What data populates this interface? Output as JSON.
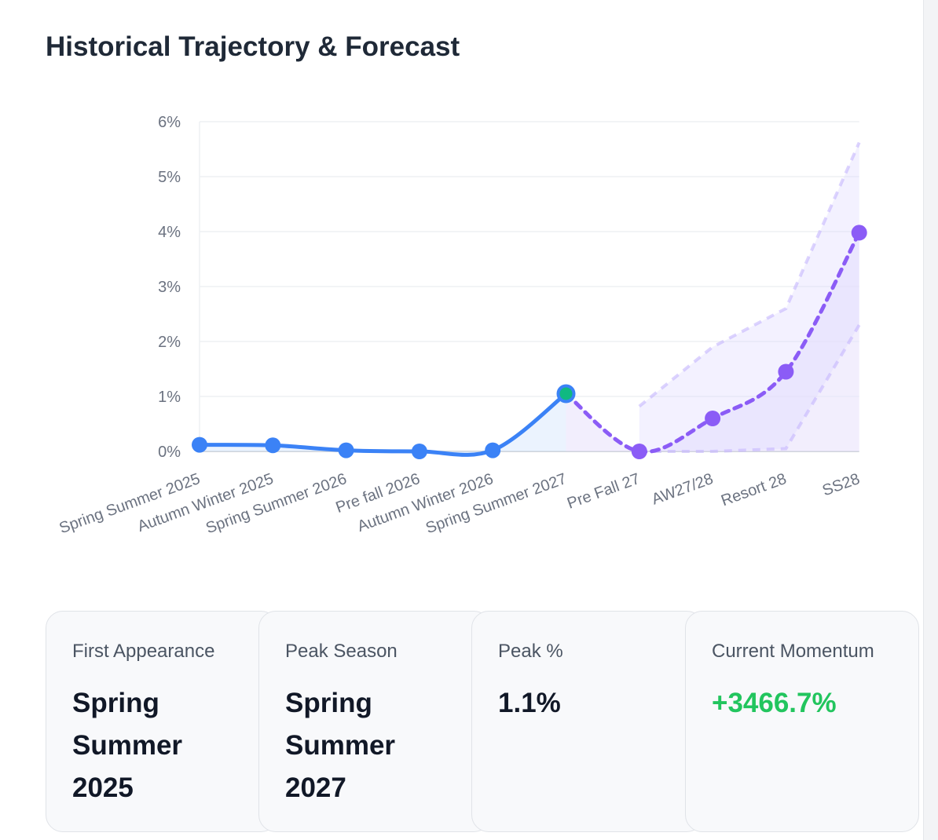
{
  "title": "Historical Trajectory & Forecast",
  "chart_data": {
    "type": "line",
    "categories": [
      "Spring Summer 2025",
      "Autumn Winter 2025",
      "Spring Summer 2026",
      "Pre fall 2026",
      "Autumn Winter 2026",
      "Spring Summer 2027",
      "Pre Fall 27",
      "AW27/28",
      "Resort 28",
      "SS28"
    ],
    "y_ticks": [
      "0%",
      "1%",
      "2%",
      "3%",
      "4%",
      "5%",
      "6%"
    ],
    "ylim": [
      0,
      6
    ],
    "grid": true,
    "historical": {
      "color": "#3b82f6",
      "values": [
        0.12,
        0.11,
        0.02,
        0.0,
        0.02,
        1.05
      ]
    },
    "peak_point": {
      "index": 5,
      "value": 1.05,
      "color": "#10b981"
    },
    "forecast": {
      "color": "#8b5cf6",
      "start_index": 5,
      "values": [
        1.05,
        0.0,
        0.6,
        1.45,
        3.98
      ]
    },
    "forecast_band": {
      "start_index": 6,
      "upper": [
        0.82,
        1.9,
        2.6,
        5.62
      ],
      "lower": [
        0.0,
        0.0,
        0.05,
        2.3
      ]
    }
  },
  "cards": [
    {
      "label": "First Appearance",
      "value": "Spring Summer 2025"
    },
    {
      "label": "Peak Season",
      "value": "Spring Summer 2027"
    },
    {
      "label": "Peak %",
      "value": "1.1%"
    },
    {
      "label": "Current Momentum",
      "value": "+3466.7%",
      "accent": "#22c55e"
    }
  ]
}
